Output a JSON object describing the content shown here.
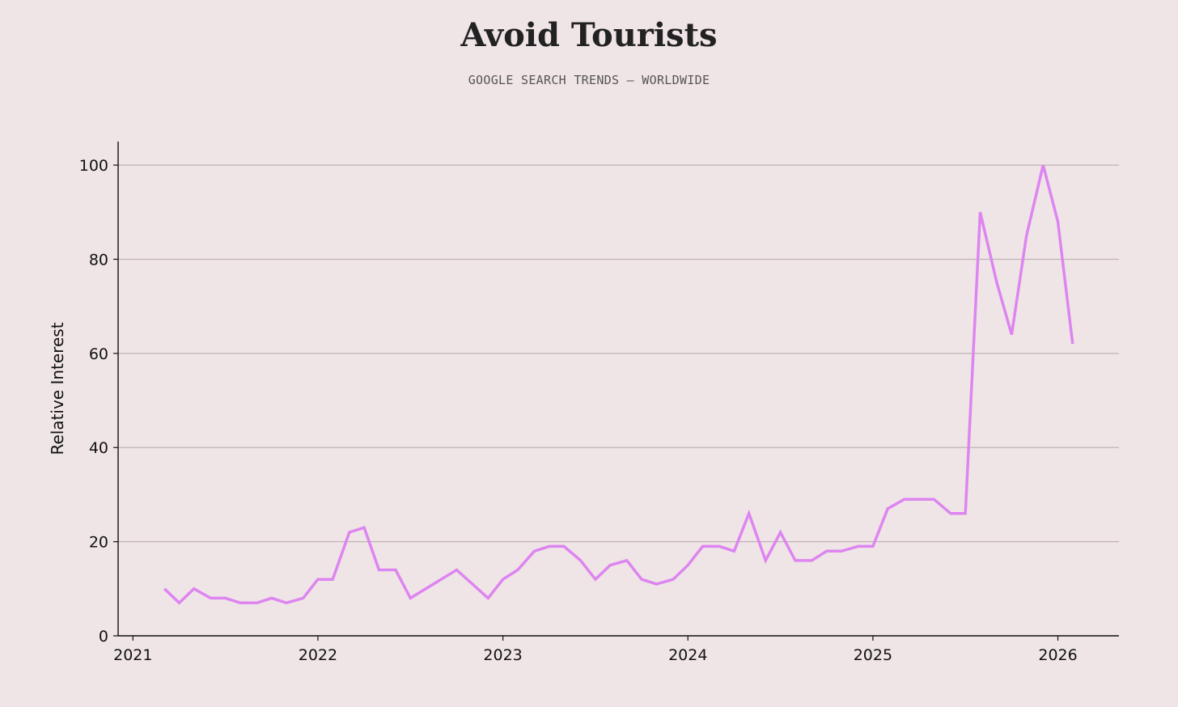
{
  "chart_data": {
    "type": "line",
    "title": "Avoid Tourists",
    "subtitle": "GOOGLE SEARCH TRENDS — WORLDWIDE",
    "xlabel": "",
    "ylabel": "Relative Interest",
    "x_ticks": [
      2021,
      2022,
      2023,
      2024,
      2025,
      2026
    ],
    "y_ticks": [
      0,
      20,
      40,
      60,
      80,
      100
    ],
    "xlim": [
      2020.92,
      2026.33
    ],
    "ylim": [
      0,
      105
    ],
    "grid": "horizontal",
    "legend": "none",
    "line_color": "#dd85f0",
    "grid_color": "#bdb3b5",
    "axis_color": "#111111",
    "background": "#f0e5e6",
    "series": [
      {
        "x": [
          2021.17,
          2021.25,
          2021.33,
          2021.42,
          2021.5,
          2021.58,
          2021.67,
          2021.75,
          2021.83,
          2021.92,
          2022.0,
          2022.08,
          2022.17,
          2022.25,
          2022.33,
          2022.42,
          2022.5,
          2022.75,
          2022.92,
          2023.0,
          2023.08,
          2023.17,
          2023.25,
          2023.33,
          2023.42,
          2023.5,
          2023.58,
          2023.67,
          2023.75,
          2023.83,
          2023.92,
          2024.0,
          2024.08,
          2024.17,
          2024.25,
          2024.33,
          2024.42,
          2024.5,
          2024.58,
          2024.67,
          2024.75,
          2024.83,
          2024.92,
          2025.0,
          2025.08,
          2025.17,
          2025.25,
          2025.33,
          2025.42,
          2025.5,
          2025.58,
          2025.67,
          2025.75,
          2025.83,
          2025.92,
          2026.0,
          2026.08
        ],
        "values": [
          10,
          7,
          10,
          8,
          8,
          7,
          7,
          8,
          7,
          8,
          12,
          12,
          22,
          23,
          14,
          14,
          8,
          14,
          8,
          12,
          14,
          18,
          19,
          19,
          16,
          12,
          15,
          16,
          12,
          11,
          12,
          15,
          19,
          19,
          18,
          26,
          16,
          22,
          16,
          16,
          18,
          18,
          19,
          19,
          27,
          29,
          29,
          29,
          26,
          26,
          90,
          75,
          64,
          85,
          100,
          88,
          62
        ]
      }
    ]
  }
}
